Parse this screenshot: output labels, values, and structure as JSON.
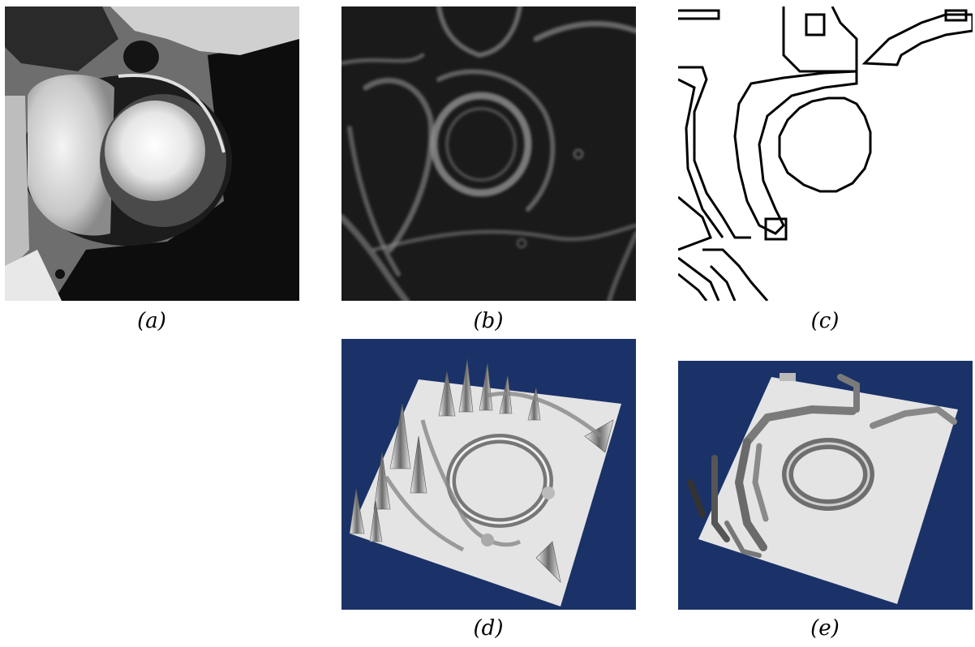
{
  "figure": {
    "captions": {
      "a": "(a)",
      "b": "(b)",
      "c": "(c)",
      "d": "(d)",
      "e": "(e)"
    },
    "colors": {
      "background": "#ffffff",
      "mri_dark": "#0d0d0d",
      "edge_map_bg": "#1a1a1a",
      "edge_stroke": "#9a9a9a",
      "surface_bg": "#1a3268",
      "surface_plane": "#e4e4e4",
      "contour_line": "#000000"
    },
    "panels": [
      {
        "id": "a",
        "description_icon": "mri-slice-icon"
      },
      {
        "id": "b",
        "description_icon": "gradient-magnitude-icon"
      },
      {
        "id": "c",
        "description_icon": "binary-contour-icon"
      },
      {
        "id": "d",
        "description_icon": "3d-surface-icon"
      },
      {
        "id": "e",
        "description_icon": "3d-surface-icon"
      }
    ]
  }
}
